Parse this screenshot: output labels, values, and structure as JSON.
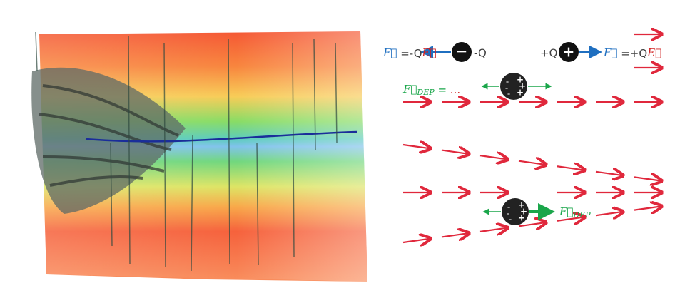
{
  "uniform_field": {
    "negative_charge": {
      "force_symbol": "F⃗",
      "force_expr": " =-Q",
      "field_symbol": "E⃗",
      "charge_label": "-Q",
      "sign": "−"
    },
    "positive_charge": {
      "charge_label": "+Q",
      "sign": "+",
      "force_symbol": "F⃗",
      "force_expr": " =+Q",
      "field_symbol": "E⃗"
    },
    "neutral_particle": {
      "force_symbol": "F⃗",
      "force_subscript": "DEP",
      "force_expr": " = ",
      "ellipsis": "...",
      "plus_sign": "+",
      "minus_sign": "-"
    }
  },
  "nonuniform_field": {
    "force_symbol": "F⃗",
    "force_subscript": "DEP",
    "plus_sign": "+",
    "minus_sign": "-"
  }
}
